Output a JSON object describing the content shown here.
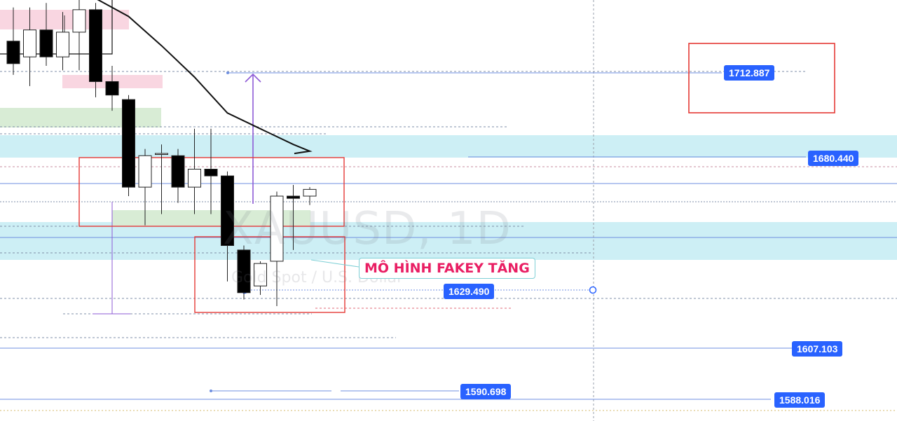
{
  "symbol_watermark": "XAUUSD, 1D",
  "description_watermark": "Gold Spot / U.S. Dollar",
  "pattern_annotation": "MÔ HÌNH FAKEY TĂNG",
  "price_labels": [
    "1712.887",
    "1680.440",
    "1629.490",
    "1607.103",
    "1590.698",
    "1588.016"
  ],
  "colors": {
    "price_label_bg": "#2962ff",
    "annotation_text": "#e91e63",
    "cyan_zone": "#cdeff5",
    "green_zone": "#d8ecd5",
    "pink_zone": "#f9d6e1",
    "rect_red": "#e53935",
    "arrow_purple": "#8e5bd6",
    "ma_line": "#111111"
  },
  "chart_data": {
    "type": "candlestick",
    "symbol": "XAUUSD",
    "timeframe": "1D",
    "ohlc_estimated": [
      {
        "o": 1727,
        "h": 1742,
        "l": 1712,
        "c": 1717
      },
      {
        "o": 1720,
        "h": 1742,
        "l": 1707,
        "c": 1732
      },
      {
        "o": 1732,
        "h": 1744,
        "l": 1716,
        "c": 1720
      },
      {
        "o": 1720,
        "h": 1740,
        "l": 1714,
        "c": 1731
      },
      {
        "o": 1731,
        "h": 1770,
        "l": 1714,
        "c": 1741
      },
      {
        "o": 1741,
        "h": 1744,
        "l": 1702,
        "c": 1709
      },
      {
        "o": 1709,
        "h": 1716,
        "l": 1696,
        "c": 1703
      },
      {
        "o": 1701,
        "h": 1703,
        "l": 1658,
        "c": 1662
      },
      {
        "o": 1662,
        "h": 1679,
        "l": 1645,
        "c": 1676
      },
      {
        "o": 1677,
        "h": 1681,
        "l": 1650,
        "c": 1677
      },
      {
        "o": 1676,
        "h": 1679,
        "l": 1655,
        "c": 1662
      },
      {
        "o": 1662,
        "h": 1688,
        "l": 1650,
        "c": 1670
      },
      {
        "o": 1670,
        "h": 1688,
        "l": 1650,
        "c": 1667
      },
      {
        "o": 1667,
        "h": 1669,
        "l": 1620,
        "c": 1636
      },
      {
        "o": 1634,
        "h": 1636,
        "l": 1612,
        "c": 1615
      },
      {
        "o": 1618,
        "h": 1629,
        "l": 1614,
        "c": 1628
      },
      {
        "o": 1629,
        "h": 1660,
        "l": 1609,
        "c": 1658
      },
      {
        "o": 1658,
        "h": 1663,
        "l": 1634,
        "c": 1657
      },
      {
        "o": 1658,
        "h": 1662,
        "l": 1654,
        "c": 1661
      }
    ],
    "moving_average_estimated": [
      [
        1,
        1755
      ],
      [
        3,
        1749
      ],
      [
        5,
        1746
      ],
      [
        7,
        1738
      ],
      [
        9,
        1725
      ],
      [
        11,
        1711
      ],
      [
        13,
        1695
      ],
      [
        15,
        1688
      ],
      [
        17,
        1681
      ],
      [
        18,
        1678
      ]
    ],
    "horizontal_levels": [
      1712.887,
      1680.44,
      1629.49,
      1607.103,
      1590.698,
      1588.016
    ],
    "zones": [
      {
        "kind": "resistance",
        "from": 1681,
        "to": 1687
      },
      {
        "kind": "support",
        "from": 1637,
        "to": 1650
      }
    ]
  }
}
